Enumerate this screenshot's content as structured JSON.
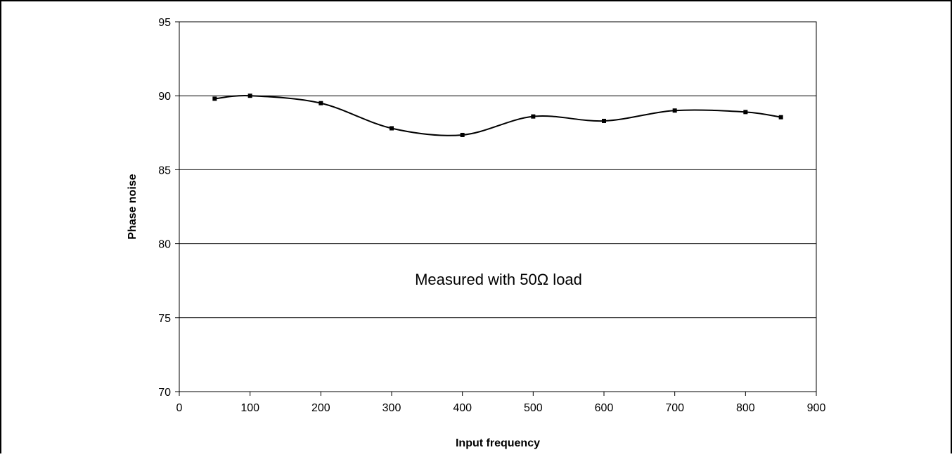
{
  "chart_data": {
    "type": "line",
    "title": "",
    "xlabel": "Input frequency",
    "ylabel": "Phase noise",
    "xlim": [
      0,
      900
    ],
    "ylim": [
      70,
      95
    ],
    "x_ticks": [
      0,
      100,
      200,
      300,
      400,
      500,
      600,
      700,
      800,
      900
    ],
    "y_ticks": [
      70,
      75,
      80,
      85,
      90,
      95
    ],
    "grid": "horizontal",
    "annotation": "Measured with 50Ω load",
    "series": [
      {
        "x": [
          50,
          100,
          200,
          300,
          400,
          500,
          600,
          700,
          800,
          850
        ],
        "y": [
          89.8,
          90.0,
          89.5,
          87.8,
          87.35,
          88.6,
          88.3,
          89.0,
          88.9,
          88.55
        ],
        "color": "#000000",
        "smooth": true,
        "marker": "square"
      }
    ]
  }
}
